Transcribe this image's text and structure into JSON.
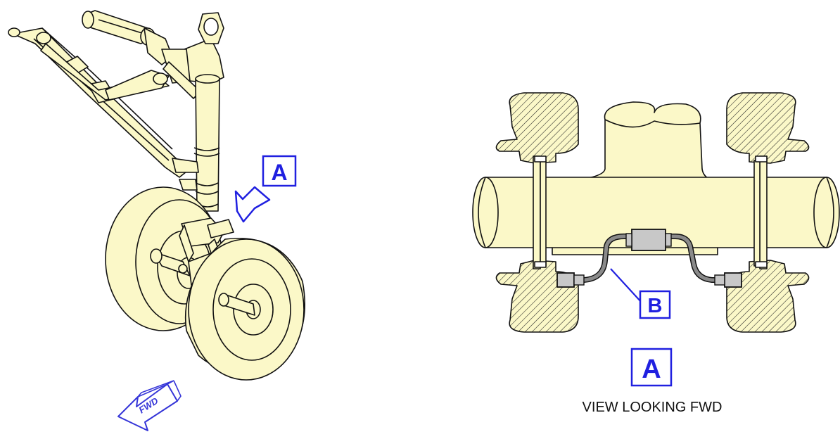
{
  "callouts": {
    "view_a_label": "A",
    "detail_a_label": "A",
    "detail_b_label": "B"
  },
  "caption": "VIEW LOOKING FWD",
  "fwd_arrow_label": "FWD",
  "colors": {
    "part_fill": "#fbf8c8",
    "outline": "#111111",
    "callout_blue": "#2020e0",
    "harness_gray": "#8a8a8a",
    "connector_gray": "#c8c8c8"
  }
}
